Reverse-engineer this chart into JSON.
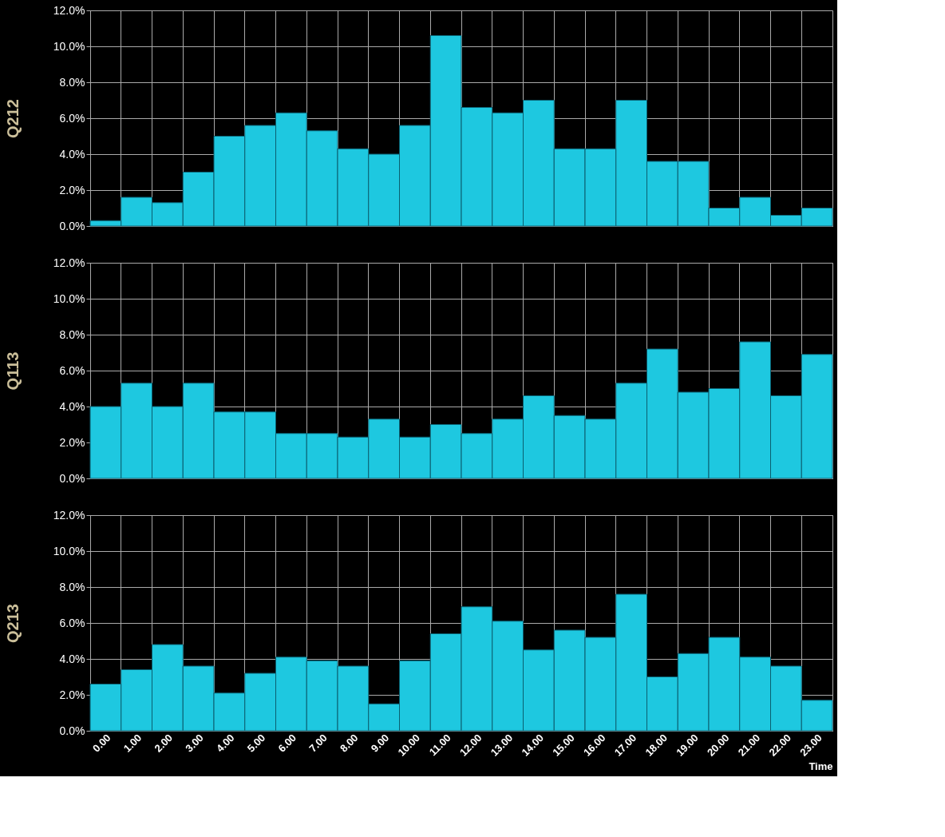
{
  "chart_data": [
    {
      "type": "bar",
      "ylabel": "Q212",
      "categories": [
        "0.00",
        "1.00",
        "2.00",
        "3.00",
        "4.00",
        "5.00",
        "6.00",
        "7.00",
        "8.00",
        "9.00",
        "10.00",
        "11.00",
        "12.00",
        "13.00",
        "14.00",
        "15.00",
        "16.00",
        "17.00",
        "18.00",
        "19.00",
        "20.00",
        "21.00",
        "22.00",
        "23.00"
      ],
      "values": [
        0.3,
        1.6,
        1.3,
        3.0,
        5.0,
        5.6,
        6.3,
        5.3,
        4.3,
        4.0,
        5.6,
        10.6,
        6.6,
        6.3,
        7.0,
        4.3,
        4.3,
        7.0,
        3.6,
        3.6,
        1.0,
        1.6,
        0.6,
        1.0
      ],
      "color": "#1ec8e0",
      "ylim": [
        0,
        12
      ],
      "yticks": [
        {
          "value": 0,
          "label": "0.0%"
        },
        {
          "value": 2,
          "label": "2.0%"
        },
        {
          "value": 4,
          "label": "4.0%"
        },
        {
          "value": 6,
          "label": "6.0%"
        },
        {
          "value": 8,
          "label": "8.0%"
        },
        {
          "value": 10,
          "label": "10.0%"
        },
        {
          "value": 12,
          "label": "12.0%"
        }
      ],
      "grid": true,
      "tick_labels": "y"
    },
    {
      "type": "bar",
      "ylabel": "Q113",
      "categories": [
        "0.00",
        "1.00",
        "2.00",
        "3.00",
        "4.00",
        "5.00",
        "6.00",
        "7.00",
        "8.00",
        "9.00",
        "10.00",
        "11.00",
        "12.00",
        "13.00",
        "14.00",
        "15.00",
        "16.00",
        "17.00",
        "18.00",
        "19.00",
        "20.00",
        "21.00",
        "22.00",
        "23.00"
      ],
      "values": [
        4.0,
        5.3,
        4.0,
        5.3,
        3.7,
        3.7,
        2.5,
        2.5,
        2.3,
        3.3,
        2.3,
        3.0,
        2.5,
        3.3,
        4.6,
        3.5,
        3.3,
        5.3,
        7.2,
        4.8,
        5.0,
        7.6,
        4.6,
        6.9
      ],
      "color": "#1ec8e0",
      "ylim": [
        0,
        12
      ],
      "yticks": [
        {
          "value": 0,
          "label": "0.0%"
        },
        {
          "value": 2,
          "label": "2.0%"
        },
        {
          "value": 4,
          "label": "4.0%"
        },
        {
          "value": 6,
          "label": "6.0%"
        },
        {
          "value": 8,
          "label": "8.0%"
        },
        {
          "value": 10,
          "label": "10.0%"
        },
        {
          "value": 12,
          "label": "12.0%"
        }
      ],
      "grid": true,
      "tick_labels": "y"
    },
    {
      "type": "bar",
      "ylabel": "Q213",
      "xlabel": "Time",
      "categories": [
        "0.00",
        "1.00",
        "2.00",
        "3.00",
        "4.00",
        "5.00",
        "6.00",
        "7.00",
        "8.00",
        "9.00",
        "10.00",
        "11.00",
        "12.00",
        "13.00",
        "14.00",
        "15.00",
        "16.00",
        "17.00",
        "18.00",
        "19.00",
        "20.00",
        "21.00",
        "22.00",
        "23.00"
      ],
      "values": [
        2.6,
        3.4,
        4.8,
        3.6,
        2.1,
        3.2,
        4.1,
        3.9,
        3.6,
        1.5,
        3.9,
        5.4,
        6.9,
        6.1,
        4.5,
        5.6,
        5.2,
        7.6,
        3.0,
        4.3,
        5.2,
        4.1,
        3.6,
        1.7
      ],
      "color": "#1ec8e0",
      "ylim": [
        0,
        12
      ],
      "yticks": [
        {
          "value": 0,
          "label": "0.0%"
        },
        {
          "value": 2,
          "label": "2.0%"
        },
        {
          "value": 4,
          "label": "4.0%"
        },
        {
          "value": 6,
          "label": "6.0%"
        },
        {
          "value": 8,
          "label": "8.0%"
        },
        {
          "value": 10,
          "label": "10.0%"
        },
        {
          "value": 12,
          "label": "12.0%"
        }
      ],
      "grid": true
    }
  ]
}
